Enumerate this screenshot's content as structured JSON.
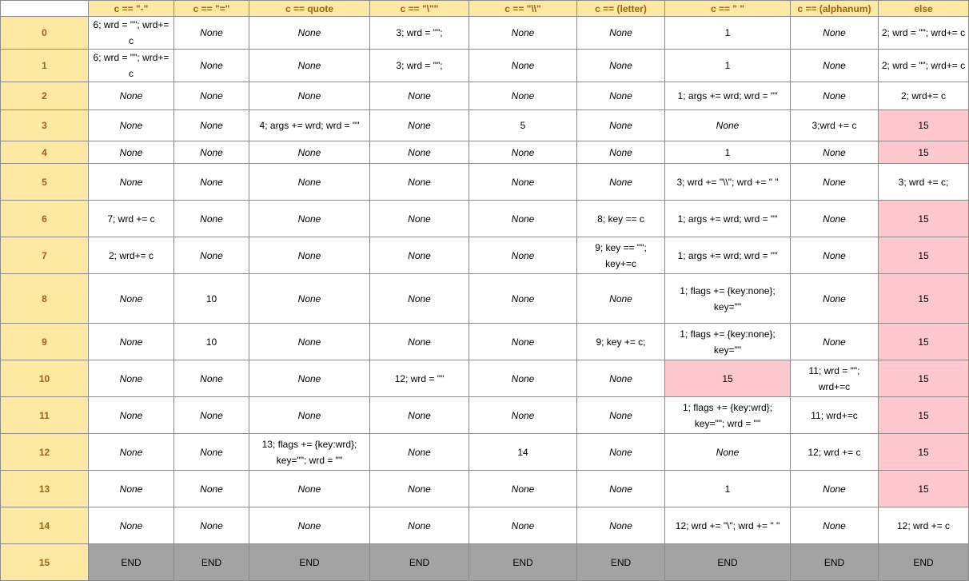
{
  "columns": [
    "",
    "c == \"-\"",
    "c == \"=\"",
    "c == quote",
    "c == \"\\\"\"",
    "c == \"\\\\\"",
    "c == (letter)",
    "c == \" \"",
    "c == (alphanum)",
    "else"
  ],
  "rows": [
    {
      "label": "0",
      "height": 41,
      "cells": [
        {
          "text": "6; wrd = \"\"; wrd+= c",
          "kind": "val"
        },
        {
          "text": "None",
          "kind": "none"
        },
        {
          "text": "None",
          "kind": "none"
        },
        {
          "text": "3; wrd = \"\";",
          "kind": "val"
        },
        {
          "text": "None",
          "kind": "none"
        },
        {
          "text": "None",
          "kind": "none"
        },
        {
          "text": "1",
          "kind": "val"
        },
        {
          "text": "None",
          "kind": "none"
        },
        {
          "text": "2; wrd = \"\"; wrd+= c",
          "kind": "val"
        }
      ]
    },
    {
      "label": "1",
      "height": 35,
      "cells": [
        {
          "text": "6; wrd = \"\"; wrd+= c",
          "kind": "val"
        },
        {
          "text": "None",
          "kind": "none"
        },
        {
          "text": "None",
          "kind": "none"
        },
        {
          "text": "3; wrd = \"\";",
          "kind": "val"
        },
        {
          "text": "None",
          "kind": "none"
        },
        {
          "text": "None",
          "kind": "none"
        },
        {
          "text": "1",
          "kind": "val"
        },
        {
          "text": "None",
          "kind": "none"
        },
        {
          "text": "2; wrd = \"\"; wrd+= c",
          "kind": "val"
        }
      ]
    },
    {
      "label": "2",
      "height": 35,
      "cells": [
        {
          "text": "None",
          "kind": "none"
        },
        {
          "text": "None",
          "kind": "none"
        },
        {
          "text": "None",
          "kind": "none"
        },
        {
          "text": "None",
          "kind": "none"
        },
        {
          "text": "None",
          "kind": "none"
        },
        {
          "text": "None",
          "kind": "none"
        },
        {
          "text": "1; args += wrd; wrd = \"\"",
          "kind": "val"
        },
        {
          "text": "None",
          "kind": "none"
        },
        {
          "text": "2; wrd+= c",
          "kind": "val"
        }
      ]
    },
    {
      "label": "3",
      "height": 39,
      "cells": [
        {
          "text": "None",
          "kind": "none"
        },
        {
          "text": "None",
          "kind": "none"
        },
        {
          "text": "4; args += wrd; wrd = \"\"",
          "kind": "val"
        },
        {
          "text": "None",
          "kind": "none"
        },
        {
          "text": "5",
          "kind": "val"
        },
        {
          "text": "None",
          "kind": "none"
        },
        {
          "text": "None",
          "kind": "none"
        },
        {
          "text": "3;wrd += c",
          "kind": "val"
        },
        {
          "text": "15",
          "kind": "err"
        }
      ]
    },
    {
      "label": "4",
      "height": 28,
      "cells": [
        {
          "text": "None",
          "kind": "none"
        },
        {
          "text": "None",
          "kind": "none"
        },
        {
          "text": "None",
          "kind": "none"
        },
        {
          "text": "None",
          "kind": "none"
        },
        {
          "text": "None",
          "kind": "none"
        },
        {
          "text": "None",
          "kind": "none"
        },
        {
          "text": "1",
          "kind": "val"
        },
        {
          "text": "None",
          "kind": "none"
        },
        {
          "text": "15",
          "kind": "err"
        }
      ]
    },
    {
      "label": "5",
      "height": 46,
      "cells": [
        {
          "text": "None",
          "kind": "none"
        },
        {
          "text": "None",
          "kind": "none"
        },
        {
          "text": "None",
          "kind": "none"
        },
        {
          "text": "None",
          "kind": "none"
        },
        {
          "text": "None",
          "kind": "none"
        },
        {
          "text": "None",
          "kind": "none"
        },
        {
          "text": "3; wrd += \"\\\\\"; wrd += \" \"",
          "kind": "val"
        },
        {
          "text": "None",
          "kind": "none"
        },
        {
          "text": "3; wrd += c;",
          "kind": "val"
        }
      ]
    },
    {
      "label": "6",
      "height": 46,
      "cells": [
        {
          "text": "7; wrd += c",
          "kind": "val"
        },
        {
          "text": "None",
          "kind": "none"
        },
        {
          "text": "None",
          "kind": "none"
        },
        {
          "text": "None",
          "kind": "none"
        },
        {
          "text": "None",
          "kind": "none"
        },
        {
          "text": "8; key == c",
          "kind": "val"
        },
        {
          "text": "1; args += wrd; wrd = \"\"",
          "kind": "val"
        },
        {
          "text": "None",
          "kind": "none"
        },
        {
          "text": "15",
          "kind": "err"
        }
      ]
    },
    {
      "label": "7",
      "height": 46,
      "cells": [
        {
          "text": "2; wrd+= c",
          "kind": "val"
        },
        {
          "text": "None",
          "kind": "none"
        },
        {
          "text": "None",
          "kind": "none"
        },
        {
          "text": "None",
          "kind": "none"
        },
        {
          "text": "None",
          "kind": "none"
        },
        {
          "text": "9; key == \"\"; key+=c",
          "kind": "val"
        },
        {
          "text": "1; args += wrd; wrd = \"\"",
          "kind": "val"
        },
        {
          "text": "None",
          "kind": "none"
        },
        {
          "text": "15",
          "kind": "err"
        }
      ]
    },
    {
      "label": "8",
      "height": 62,
      "cells": [
        {
          "text": "None",
          "kind": "none"
        },
        {
          "text": "10",
          "kind": "val"
        },
        {
          "text": "None",
          "kind": "none"
        },
        {
          "text": "None",
          "kind": "none"
        },
        {
          "text": "None",
          "kind": "none"
        },
        {
          "text": "None",
          "kind": "none"
        },
        {
          "text": "1; flags += {key:none}; key=\"\"",
          "kind": "val"
        },
        {
          "text": "None",
          "kind": "none"
        },
        {
          "text": "15",
          "kind": "err"
        }
      ]
    },
    {
      "label": "9",
      "height": 46,
      "cells": [
        {
          "text": "None",
          "kind": "none"
        },
        {
          "text": "10",
          "kind": "val"
        },
        {
          "text": "None",
          "kind": "none"
        },
        {
          "text": "None",
          "kind": "none"
        },
        {
          "text": "None",
          "kind": "none"
        },
        {
          "text": "9; key += c;",
          "kind": "val"
        },
        {
          "text": "1; flags += {key:none}; key=\"\"",
          "kind": "val"
        },
        {
          "text": "None",
          "kind": "none"
        },
        {
          "text": "15",
          "kind": "err"
        }
      ]
    },
    {
      "label": "10",
      "height": 46,
      "cells": [
        {
          "text": "None",
          "kind": "none"
        },
        {
          "text": "None",
          "kind": "none"
        },
        {
          "text": "None",
          "kind": "none"
        },
        {
          "text": "12; wrd = \"\"",
          "kind": "val"
        },
        {
          "text": "None",
          "kind": "none"
        },
        {
          "text": "None",
          "kind": "none"
        },
        {
          "text": "15",
          "kind": "err"
        },
        {
          "text": "11; wrd = \"\"; wrd+=c",
          "kind": "val"
        },
        {
          "text": "15",
          "kind": "err"
        }
      ]
    },
    {
      "label": "11",
      "height": 46,
      "cells": [
        {
          "text": "None",
          "kind": "none"
        },
        {
          "text": "None",
          "kind": "none"
        },
        {
          "text": "None",
          "kind": "none"
        },
        {
          "text": "None",
          "kind": "none"
        },
        {
          "text": "None",
          "kind": "none"
        },
        {
          "text": "None",
          "kind": "none"
        },
        {
          "text": "1; flags += {key:wrd}; key=\"\"; wrd = \"\"",
          "kind": "val"
        },
        {
          "text": "11; wrd+=c",
          "kind": "val"
        },
        {
          "text": "15",
          "kind": "err"
        }
      ]
    },
    {
      "label": "12",
      "height": 46,
      "cells": [
        {
          "text": "None",
          "kind": "none"
        },
        {
          "text": "None",
          "kind": "none"
        },
        {
          "text": "13; flags += {key:wrd}; key=\"\"; wrd = \"\"",
          "kind": "val"
        },
        {
          "text": "None",
          "kind": "none"
        },
        {
          "text": "14",
          "kind": "val"
        },
        {
          "text": "None",
          "kind": "none"
        },
        {
          "text": "None",
          "kind": "none"
        },
        {
          "text": "12; wrd += c",
          "kind": "val"
        },
        {
          "text": "15",
          "kind": "err"
        }
      ]
    },
    {
      "label": "13",
      "height": 46,
      "cells": [
        {
          "text": "None",
          "kind": "none"
        },
        {
          "text": "None",
          "kind": "none"
        },
        {
          "text": "None",
          "kind": "none"
        },
        {
          "text": "None",
          "kind": "none"
        },
        {
          "text": "None",
          "kind": "none"
        },
        {
          "text": "None",
          "kind": "none"
        },
        {
          "text": "1",
          "kind": "val"
        },
        {
          "text": "None",
          "kind": "none"
        },
        {
          "text": "15",
          "kind": "err"
        }
      ]
    },
    {
      "label": "14",
      "height": 46,
      "cells": [
        {
          "text": "None",
          "kind": "none"
        },
        {
          "text": "None",
          "kind": "none"
        },
        {
          "text": "None",
          "kind": "none"
        },
        {
          "text": "None",
          "kind": "none"
        },
        {
          "text": "None",
          "kind": "none"
        },
        {
          "text": "None",
          "kind": "none"
        },
        {
          "text": "12; wrd += \"\\\"; wrd += \" \"",
          "kind": "val"
        },
        {
          "text": "None",
          "kind": "none"
        },
        {
          "text": "12; wrd += c",
          "kind": "val"
        }
      ]
    },
    {
      "label": "15",
      "height": 46,
      "cells": [
        {
          "text": "END",
          "kind": "end"
        },
        {
          "text": "END",
          "kind": "end"
        },
        {
          "text": "END",
          "kind": "end"
        },
        {
          "text": "END",
          "kind": "end"
        },
        {
          "text": "END",
          "kind": "end"
        },
        {
          "text": "END",
          "kind": "end"
        },
        {
          "text": "END",
          "kind": "end"
        },
        {
          "text": "END",
          "kind": "end"
        },
        {
          "text": "END",
          "kind": "end"
        }
      ]
    }
  ]
}
